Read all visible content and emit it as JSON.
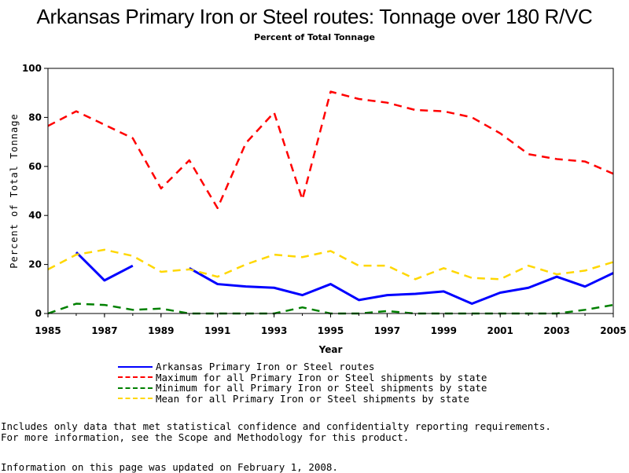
{
  "chart_data": {
    "type": "line",
    "title": "Arkansas Primary Iron or Steel routes: Tonnage over 180 R/VC",
    "subtitle": "Percent of Total Tonnage",
    "xlabel": "Year",
    "ylabel": "Percent of Total Tonnage",
    "xlim": [
      1985,
      2005
    ],
    "ylim": [
      0,
      100
    ],
    "x_ticks": [
      "1985",
      "1987",
      "1989",
      "1991",
      "1993",
      "1995",
      "1997",
      "1999",
      "2001",
      "2003",
      "2005"
    ],
    "y_ticks": [
      "0",
      "20",
      "40",
      "60",
      "80",
      "100"
    ],
    "x": [
      1985,
      1986,
      1987,
      1988,
      1989,
      1990,
      1991,
      1992,
      1993,
      1994,
      1995,
      1996,
      1997,
      1998,
      1999,
      2000,
      2001,
      2002,
      2003,
      2004,
      2005
    ],
    "series": [
      {
        "name": "Arkansas Primary Iron or Steel routes",
        "color": "#0000ff",
        "style": "solid",
        "values": [
          null,
          25,
          13.5,
          19.5,
          null,
          18.5,
          12,
          11,
          10.5,
          7.5,
          12,
          5.5,
          7.5,
          8,
          9,
          4,
          8.5,
          10.5,
          15,
          11,
          16.5
        ]
      },
      {
        "name": "Maximum for all Primary Iron or Steel shipments by state",
        "color": "#ff0000",
        "style": "dashed",
        "values": [
          76.5,
          82.5,
          77,
          71.5,
          51,
          62.5,
          43,
          69.5,
          82,
          46.5,
          90.5,
          87.5,
          86,
          83,
          82.5,
          80,
          73.5,
          65,
          63,
          62,
          57
        ]
      },
      {
        "name": "Minimum for all Primary Iron or Steel shipments by state",
        "color": "#008000",
        "style": "dashed",
        "values": [
          0,
          4,
          3.5,
          1.5,
          2,
          0,
          0,
          0,
          0,
          2.5,
          0,
          0,
          1,
          0,
          0,
          0,
          0,
          0,
          0,
          1.5,
          3.5
        ]
      },
      {
        "name": "Mean for all Primary Iron or Steel shipments by state",
        "color": "#ffd700",
        "style": "dashed",
        "values": [
          18,
          24,
          26,
          23.5,
          17,
          18,
          15,
          20,
          24,
          23,
          25.5,
          19.5,
          19.5,
          14,
          18.5,
          14.5,
          14,
          19.5,
          16,
          17.5,
          21
        ]
      }
    ]
  },
  "notes": {
    "line1": "Includes only data that met statistical confidence and confidentialty reporting requirements.",
    "line2": "For more information, see the Scope and Methodology for this product.",
    "updated": "Information on this page was updated on February 1, 2008."
  }
}
